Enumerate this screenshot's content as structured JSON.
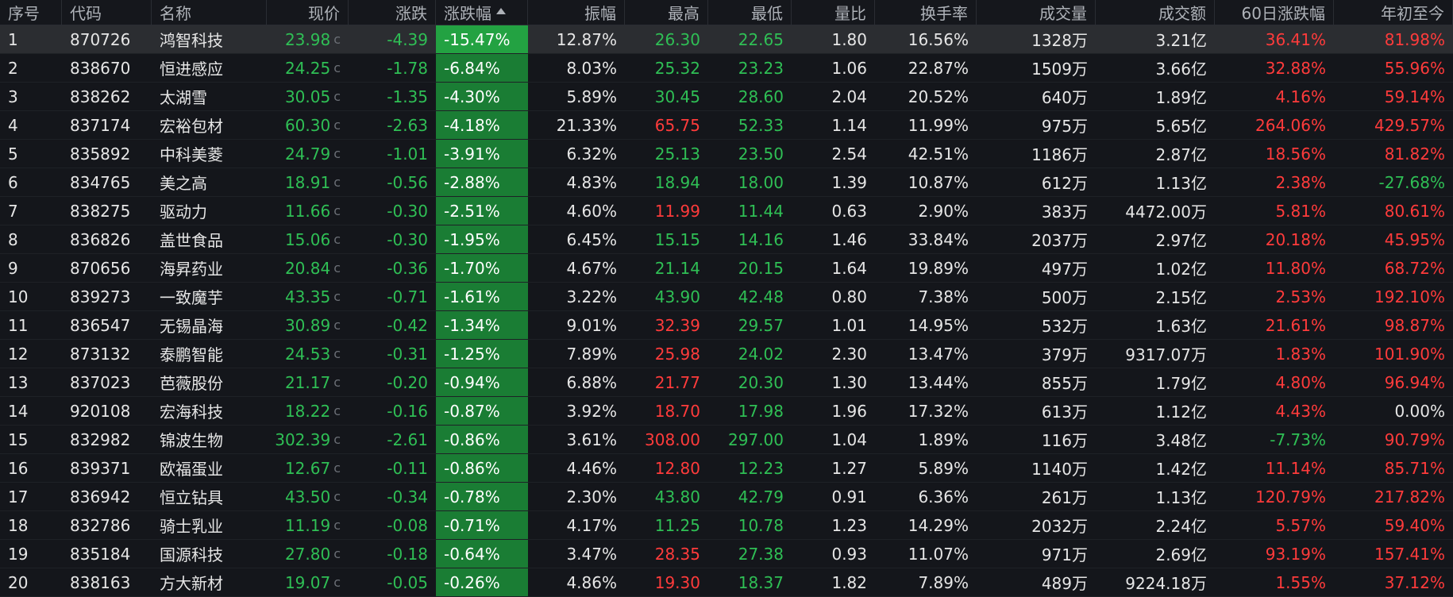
{
  "colors": {
    "up": "#ff3b3b",
    "down": "#2fbf55",
    "neutral": "#e6e6e6",
    "name": "#e6e6e6",
    "header_text": "#aeb2b8",
    "pct_bg": "#1a7d34",
    "pct_bg_selected": "#23a242"
  },
  "selected_row": 0,
  "sort": {
    "column": "pct",
    "direction": "asc"
  },
  "columns": [
    {
      "key": "idx",
      "label": "序号",
      "align": "left"
    },
    {
      "key": "code",
      "label": "代码",
      "align": "left"
    },
    {
      "key": "name",
      "label": "名称",
      "align": "left"
    },
    {
      "key": "price",
      "label": "现价",
      "align": "right"
    },
    {
      "key": "chg",
      "label": "涨跌",
      "align": "right"
    },
    {
      "key": "pct",
      "label": "涨跌幅",
      "align": "left"
    },
    {
      "key": "amp",
      "label": "振幅",
      "align": "right"
    },
    {
      "key": "high",
      "label": "最高",
      "align": "right"
    },
    {
      "key": "low",
      "label": "最低",
      "align": "right"
    },
    {
      "key": "vr",
      "label": "量比",
      "align": "right"
    },
    {
      "key": "tr",
      "label": "换手率",
      "align": "right"
    },
    {
      "key": "vol",
      "label": "成交量",
      "align": "right"
    },
    {
      "key": "amt",
      "label": "成交额",
      "align": "right"
    },
    {
      "key": "d60",
      "label": "60日涨跌幅",
      "align": "right"
    },
    {
      "key": "ytd",
      "label": "年初至今",
      "align": "right"
    }
  ],
  "price_mark": "c",
  "rows": [
    {
      "idx": "1",
      "code": "870726",
      "name": "鸿智科技",
      "price": "23.98",
      "chg": "-4.39",
      "pct": "-15.47%",
      "amp": "12.87%",
      "high": "26.30",
      "high_dir": "down",
      "low": "22.65",
      "vr": "1.80",
      "tr": "16.56%",
      "vol": "1328万",
      "amt": "3.21亿",
      "d60": "36.41%",
      "d60_dir": "up",
      "ytd": "81.98%",
      "ytd_dir": "up"
    },
    {
      "idx": "2",
      "code": "838670",
      "name": "恒进感应",
      "price": "24.25",
      "chg": "-1.78",
      "pct": "-6.84%",
      "amp": "8.03%",
      "high": "25.32",
      "high_dir": "down",
      "low": "23.23",
      "vr": "1.06",
      "tr": "22.87%",
      "vol": "1509万",
      "amt": "3.66亿",
      "d60": "32.88%",
      "d60_dir": "up",
      "ytd": "55.96%",
      "ytd_dir": "up"
    },
    {
      "idx": "3",
      "code": "838262",
      "name": "太湖雪",
      "price": "30.05",
      "chg": "-1.35",
      "pct": "-4.30%",
      "amp": "5.89%",
      "high": "30.45",
      "high_dir": "down",
      "low": "28.60",
      "vr": "2.04",
      "tr": "20.52%",
      "vol": "640万",
      "amt": "1.89亿",
      "d60": "4.16%",
      "d60_dir": "up",
      "ytd": "59.14%",
      "ytd_dir": "up"
    },
    {
      "idx": "4",
      "code": "837174",
      "name": "宏裕包材",
      "price": "60.30",
      "chg": "-2.63",
      "pct": "-4.18%",
      "amp": "21.33%",
      "high": "65.75",
      "high_dir": "up",
      "low": "52.33",
      "vr": "1.14",
      "tr": "11.99%",
      "vol": "975万",
      "amt": "5.65亿",
      "d60": "264.06%",
      "d60_dir": "up",
      "ytd": "429.57%",
      "ytd_dir": "up"
    },
    {
      "idx": "5",
      "code": "835892",
      "name": "中科美菱",
      "price": "24.79",
      "chg": "-1.01",
      "pct": "-3.91%",
      "amp": "6.32%",
      "high": "25.13",
      "high_dir": "down",
      "low": "23.50",
      "vr": "2.54",
      "tr": "42.51%",
      "vol": "1186万",
      "amt": "2.87亿",
      "d60": "18.56%",
      "d60_dir": "up",
      "ytd": "81.82%",
      "ytd_dir": "up"
    },
    {
      "idx": "6",
      "code": "834765",
      "name": "美之高",
      "price": "18.91",
      "chg": "-0.56",
      "pct": "-2.88%",
      "amp": "4.83%",
      "high": "18.94",
      "high_dir": "down",
      "low": "18.00",
      "vr": "1.39",
      "tr": "10.87%",
      "vol": "612万",
      "amt": "1.13亿",
      "d60": "2.38%",
      "d60_dir": "up",
      "ytd": "-27.68%",
      "ytd_dir": "down"
    },
    {
      "idx": "7",
      "code": "838275",
      "name": "驱动力",
      "price": "11.66",
      "chg": "-0.30",
      "pct": "-2.51%",
      "amp": "4.60%",
      "high": "11.99",
      "high_dir": "up",
      "low": "11.44",
      "vr": "0.63",
      "tr": "2.90%",
      "vol": "383万",
      "amt": "4472.00万",
      "d60": "5.81%",
      "d60_dir": "up",
      "ytd": "80.61%",
      "ytd_dir": "up"
    },
    {
      "idx": "8",
      "code": "836826",
      "name": "盖世食品",
      "price": "15.06",
      "chg": "-0.30",
      "pct": "-1.95%",
      "amp": "6.45%",
      "high": "15.15",
      "high_dir": "down",
      "low": "14.16",
      "vr": "1.46",
      "tr": "33.84%",
      "vol": "2037万",
      "amt": "2.97亿",
      "d60": "20.18%",
      "d60_dir": "up",
      "ytd": "45.95%",
      "ytd_dir": "up"
    },
    {
      "idx": "9",
      "code": "870656",
      "name": "海昇药业",
      "price": "20.84",
      "chg": "-0.36",
      "pct": "-1.70%",
      "amp": "4.67%",
      "high": "21.14",
      "high_dir": "down",
      "low": "20.15",
      "vr": "1.64",
      "tr": "19.89%",
      "vol": "497万",
      "amt": "1.02亿",
      "d60": "11.80%",
      "d60_dir": "up",
      "ytd": "68.72%",
      "ytd_dir": "up"
    },
    {
      "idx": "10",
      "code": "839273",
      "name": "一致魔芋",
      "price": "43.35",
      "chg": "-0.71",
      "pct": "-1.61%",
      "amp": "3.22%",
      "high": "43.90",
      "high_dir": "down",
      "low": "42.48",
      "vr": "0.80",
      "tr": "7.38%",
      "vol": "500万",
      "amt": "2.15亿",
      "d60": "2.53%",
      "d60_dir": "up",
      "ytd": "192.10%",
      "ytd_dir": "up"
    },
    {
      "idx": "11",
      "code": "836547",
      "name": "无锡晶海",
      "price": "30.89",
      "chg": "-0.42",
      "pct": "-1.34%",
      "amp": "9.01%",
      "high": "32.39",
      "high_dir": "up",
      "low": "29.57",
      "vr": "1.01",
      "tr": "14.95%",
      "vol": "532万",
      "amt": "1.63亿",
      "d60": "21.61%",
      "d60_dir": "up",
      "ytd": "98.87%",
      "ytd_dir": "up"
    },
    {
      "idx": "12",
      "code": "873132",
      "name": "泰鹏智能",
      "price": "24.53",
      "chg": "-0.31",
      "pct": "-1.25%",
      "amp": "7.89%",
      "high": "25.98",
      "high_dir": "up",
      "low": "24.02",
      "vr": "2.30",
      "tr": "13.47%",
      "vol": "379万",
      "amt": "9317.07万",
      "d60": "1.83%",
      "d60_dir": "up",
      "ytd": "101.90%",
      "ytd_dir": "up"
    },
    {
      "idx": "13",
      "code": "837023",
      "name": "芭薇股份",
      "price": "21.17",
      "chg": "-0.20",
      "pct": "-0.94%",
      "amp": "6.88%",
      "high": "21.77",
      "high_dir": "up",
      "low": "20.30",
      "vr": "1.30",
      "tr": "13.44%",
      "vol": "855万",
      "amt": "1.79亿",
      "d60": "4.80%",
      "d60_dir": "up",
      "ytd": "96.94%",
      "ytd_dir": "up"
    },
    {
      "idx": "14",
      "code": "920108",
      "name": "宏海科技",
      "price": "18.22",
      "chg": "-0.16",
      "pct": "-0.87%",
      "amp": "3.92%",
      "high": "18.70",
      "high_dir": "up",
      "low": "17.98",
      "vr": "1.96",
      "tr": "17.32%",
      "vol": "613万",
      "amt": "1.12亿",
      "d60": "4.43%",
      "d60_dir": "up",
      "ytd": "0.00%",
      "ytd_dir": "neutral"
    },
    {
      "idx": "15",
      "code": "832982",
      "name": "锦波生物",
      "price": "302.39",
      "chg": "-2.61",
      "pct": "-0.86%",
      "amp": "3.61%",
      "high": "308.00",
      "high_dir": "up",
      "low": "297.00",
      "vr": "1.04",
      "tr": "1.89%",
      "vol": "116万",
      "amt": "3.48亿",
      "d60": "-7.73%",
      "d60_dir": "down",
      "ytd": "90.79%",
      "ytd_dir": "up"
    },
    {
      "idx": "16",
      "code": "839371",
      "name": "欧福蛋业",
      "price": "12.67",
      "chg": "-0.11",
      "pct": "-0.86%",
      "amp": "4.46%",
      "high": "12.80",
      "high_dir": "up",
      "low": "12.23",
      "vr": "1.27",
      "tr": "5.89%",
      "vol": "1140万",
      "amt": "1.42亿",
      "d60": "11.14%",
      "d60_dir": "up",
      "ytd": "85.71%",
      "ytd_dir": "up"
    },
    {
      "idx": "17",
      "code": "836942",
      "name": "恒立钻具",
      "price": "43.50",
      "chg": "-0.34",
      "pct": "-0.78%",
      "amp": "2.30%",
      "high": "43.80",
      "high_dir": "down",
      "low": "42.79",
      "vr": "0.91",
      "tr": "6.36%",
      "vol": "261万",
      "amt": "1.13亿",
      "d60": "120.79%",
      "d60_dir": "up",
      "ytd": "217.82%",
      "ytd_dir": "up"
    },
    {
      "idx": "18",
      "code": "832786",
      "name": "骑士乳业",
      "price": "11.19",
      "chg": "-0.08",
      "pct": "-0.71%",
      "amp": "4.17%",
      "high": "11.25",
      "high_dir": "down",
      "low": "10.78",
      "vr": "1.23",
      "tr": "14.29%",
      "vol": "2032万",
      "amt": "2.24亿",
      "d60": "5.57%",
      "d60_dir": "up",
      "ytd": "59.40%",
      "ytd_dir": "up"
    },
    {
      "idx": "19",
      "code": "835184",
      "name": "国源科技",
      "price": "27.80",
      "chg": "-0.18",
      "pct": "-0.64%",
      "amp": "3.47%",
      "high": "28.35",
      "high_dir": "up",
      "low": "27.38",
      "vr": "0.93",
      "tr": "11.07%",
      "vol": "971万",
      "amt": "2.69亿",
      "d60": "93.19%",
      "d60_dir": "up",
      "ytd": "157.41%",
      "ytd_dir": "up"
    },
    {
      "idx": "20",
      "code": "838163",
      "name": "方大新材",
      "price": "19.07",
      "chg": "-0.05",
      "pct": "-0.26%",
      "amp": "4.86%",
      "high": "19.30",
      "high_dir": "up",
      "low": "18.37",
      "vr": "1.82",
      "tr": "7.89%",
      "vol": "489万",
      "amt": "9224.18万",
      "d60": "1.55%",
      "d60_dir": "up",
      "ytd": "37.12%",
      "ytd_dir": "up"
    }
  ]
}
